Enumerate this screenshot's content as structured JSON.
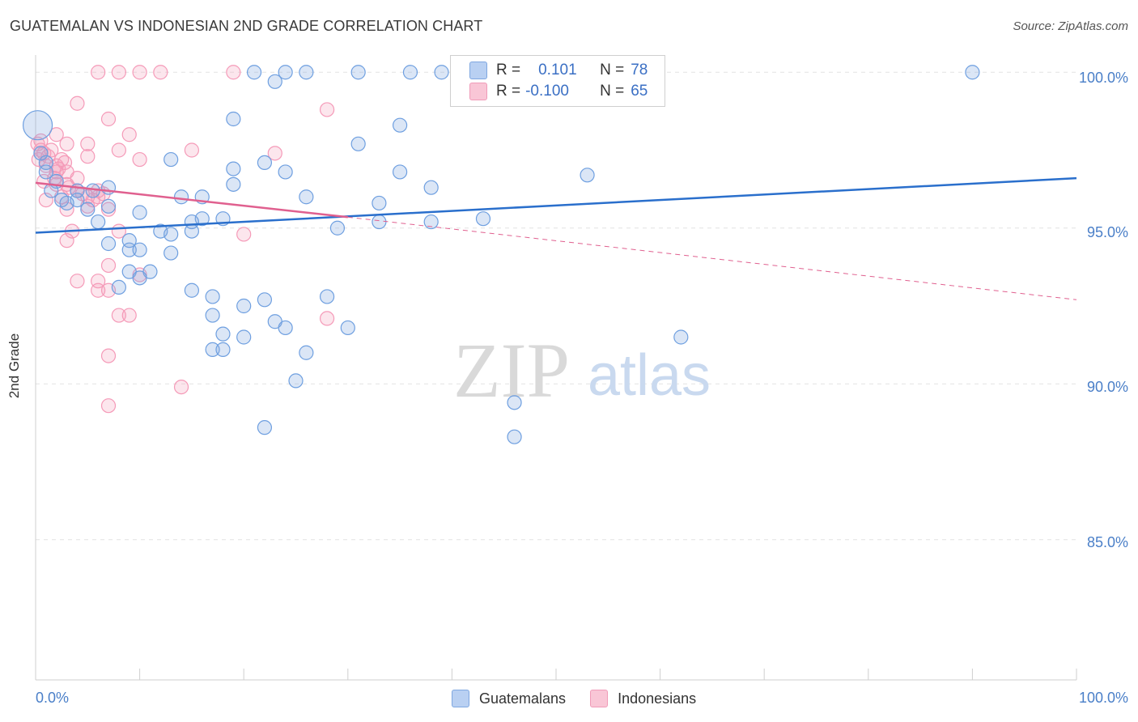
{
  "title": "GUATEMALAN VS INDONESIAN 2ND GRADE CORRELATION CHART",
  "source": "Source: ZipAtlas.com",
  "watermark": {
    "zip": "ZIP",
    "atlas": "atlas"
  },
  "chart_data": {
    "type": "scatter",
    "ylabel": "2nd Grade",
    "xlim": [
      0,
      100
    ],
    "ylim": [
      80.5,
      100.5
    ],
    "x_tick_labels": [
      "0.0%",
      "100.0%"
    ],
    "y_ticks": [
      {
        "value": 100,
        "label": "100.0%"
      },
      {
        "value": 95,
        "label": "95.0%"
      },
      {
        "value": 90,
        "label": "90.0%"
      },
      {
        "value": 85,
        "label": "85.0%"
      }
    ],
    "legend_position": "top-center",
    "series": [
      {
        "name": "Guatemalans",
        "color": "#6e9fe0",
        "line_color": "#2a6fcc",
        "R": "0.101",
        "N": "78",
        "trend": {
          "x0": 0,
          "y0": 94.85,
          "x1": 100,
          "y1": 96.6
        },
        "points": [
          [
            0.2,
            98.3
          ],
          [
            21,
            100
          ],
          [
            24,
            100
          ],
          [
            26,
            100
          ],
          [
            31,
            100
          ],
          [
            36,
            100
          ],
          [
            39,
            100
          ],
          [
            58,
            100
          ],
          [
            90,
            100
          ],
          [
            23,
            99.7
          ],
          [
            19,
            98.5
          ],
          [
            35,
            98.3
          ],
          [
            31,
            97.7
          ],
          [
            13,
            97.2
          ],
          [
            22,
            97.1
          ],
          [
            19,
            96.9
          ],
          [
            24,
            96.8
          ],
          [
            35,
            96.8
          ],
          [
            53,
            96.7
          ],
          [
            1,
            97.1
          ],
          [
            2,
            96.5
          ],
          [
            7,
            96.3
          ],
          [
            19,
            96.4
          ],
          [
            38,
            96.3
          ],
          [
            1.5,
            96.2
          ],
          [
            5.5,
            96.2
          ],
          [
            14,
            96
          ],
          [
            2.5,
            95.9
          ],
          [
            4,
            95.9
          ],
          [
            3,
            95.8
          ],
          [
            7,
            95.7
          ],
          [
            10,
            95.5
          ],
          [
            26,
            96
          ],
          [
            5,
            95.6
          ],
          [
            16,
            96
          ],
          [
            16,
            95.3
          ],
          [
            33,
            95.8
          ],
          [
            6,
            95.2
          ],
          [
            18,
            95.3
          ],
          [
            15,
            95.2
          ],
          [
            29,
            95
          ],
          [
            33,
            95.2
          ],
          [
            38,
            95.2
          ],
          [
            43,
            95.3
          ],
          [
            12,
            94.9
          ],
          [
            15,
            94.9
          ],
          [
            13,
            94.8
          ],
          [
            7,
            94.5
          ],
          [
            9,
            94.6
          ],
          [
            9,
            94.3
          ],
          [
            10,
            94.3
          ],
          [
            13,
            94.2
          ],
          [
            9,
            93.6
          ],
          [
            11,
            93.6
          ],
          [
            10,
            93.4
          ],
          [
            8,
            93.1
          ],
          [
            15,
            93
          ],
          [
            17,
            92.8
          ],
          [
            20,
            92.5
          ],
          [
            22,
            92.7
          ],
          [
            28,
            92.8
          ],
          [
            17,
            92.2
          ],
          [
            23,
            92
          ],
          [
            24,
            91.8
          ],
          [
            18,
            91.6
          ],
          [
            20,
            91.5
          ],
          [
            30,
            91.8
          ],
          [
            62,
            91.5
          ],
          [
            17,
            91.1
          ],
          [
            18,
            91.1
          ],
          [
            26,
            91
          ],
          [
            25,
            90.1
          ],
          [
            46,
            89.4
          ],
          [
            22,
            88.6
          ],
          [
            46,
            88.3
          ],
          [
            0.5,
            97.4
          ],
          [
            4,
            96.2
          ],
          [
            1,
            96.8
          ]
        ]
      },
      {
        "name": "Indonesians",
        "color": "#f59ab8",
        "line_color": "#e0608f",
        "R": "-0.100",
        "N": "65",
        "trend": {
          "x0": 0,
          "y0": 96.45,
          "x1": 30,
          "y1": 95.35,
          "dash_x1": 100,
          "dash_y1": 92.7
        },
        "points": [
          [
            6,
            100
          ],
          [
            8,
            100
          ],
          [
            10,
            100
          ],
          [
            12,
            100
          ],
          [
            19,
            100
          ],
          [
            4,
            99
          ],
          [
            7,
            98.5
          ],
          [
            28,
            98.8
          ],
          [
            2,
            98
          ],
          [
            9,
            98
          ],
          [
            0.2,
            97.7
          ],
          [
            3,
            97.7
          ],
          [
            5,
            97.7
          ],
          [
            0.5,
            97.5
          ],
          [
            1.5,
            97.5
          ],
          [
            8,
            97.5
          ],
          [
            15,
            97.5
          ],
          [
            23,
            97.4
          ],
          [
            0.3,
            97.2
          ],
          [
            2.5,
            97.2
          ],
          [
            5,
            97.3
          ],
          [
            10,
            97.2
          ],
          [
            1,
            97
          ],
          [
            2,
            97
          ],
          [
            2,
            96.8
          ],
          [
            3,
            96.8
          ],
          [
            4,
            96.6
          ],
          [
            0.8,
            96.5
          ],
          [
            2,
            96.4
          ],
          [
            3,
            96.4
          ],
          [
            4,
            96.2
          ],
          [
            6,
            96.2
          ],
          [
            2.5,
            96
          ],
          [
            5,
            96
          ],
          [
            6,
            96
          ],
          [
            1,
            95.9
          ],
          [
            3,
            95.6
          ],
          [
            7,
            95.6
          ],
          [
            5,
            95.7
          ],
          [
            3.5,
            94.9
          ],
          [
            8,
            94.9
          ],
          [
            20,
            94.8
          ],
          [
            3,
            94.6
          ],
          [
            7,
            93.8
          ],
          [
            10,
            93.5
          ],
          [
            4,
            93.3
          ],
          [
            6,
            93.3
          ],
          [
            6,
            93
          ],
          [
            7,
            93
          ],
          [
            8,
            92.2
          ],
          [
            9,
            92.2
          ],
          [
            28,
            92.1
          ],
          [
            7,
            90.9
          ],
          [
            14,
            89.9
          ],
          [
            7,
            89.3
          ],
          [
            0.5,
            97.8
          ],
          [
            1.2,
            97.3
          ],
          [
            2.2,
            96.9
          ],
          [
            4.5,
            96.1
          ],
          [
            5.5,
            95.9
          ],
          [
            3.2,
            96.3
          ],
          [
            6.5,
            96.1
          ],
          [
            1.8,
            96.6
          ],
          [
            2.8,
            97.1
          ],
          [
            0.8,
            97.4
          ]
        ]
      }
    ]
  }
}
